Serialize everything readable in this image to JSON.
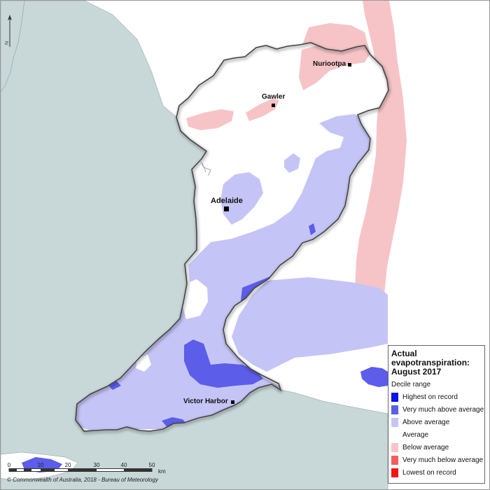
{
  "map": {
    "legend": {
      "title_line1": "Actual",
      "title_line2": "evapotranspiration:",
      "title_line3": "August 2017",
      "subtitle": "Decile range",
      "items": [
        {
          "label": "Highest on record",
          "color": "#0a12e6"
        },
        {
          "label": "Very much above average",
          "color": "#5c5de8"
        },
        {
          "label": "Above average",
          "color": "#c4c5f6"
        },
        {
          "label": "Average",
          "color": "#ffffff"
        },
        {
          "label": "Below average",
          "color": "#f6c4c7"
        },
        {
          "label": "Very much below average",
          "color": "#f35d60"
        },
        {
          "label": "Lowest on record",
          "color": "#f01618"
        }
      ]
    },
    "places": [
      {
        "name": "Nuriootpa"
      },
      {
        "name": "Gawler"
      },
      {
        "name": "Adelaide"
      },
      {
        "name": "Victor Harbor"
      }
    ],
    "scale": {
      "ticks": [
        "0",
        "10",
        "20",
        "30",
        "40",
        "50"
      ],
      "unit": "km"
    },
    "north_letter": "N",
    "copyright": "© Commonwealth of Australia, 2018 - Bureau of Meteorology",
    "colors": {
      "sea": "#c8d7d8",
      "land_outside": "#ffffff",
      "outline": "#555555"
    }
  }
}
